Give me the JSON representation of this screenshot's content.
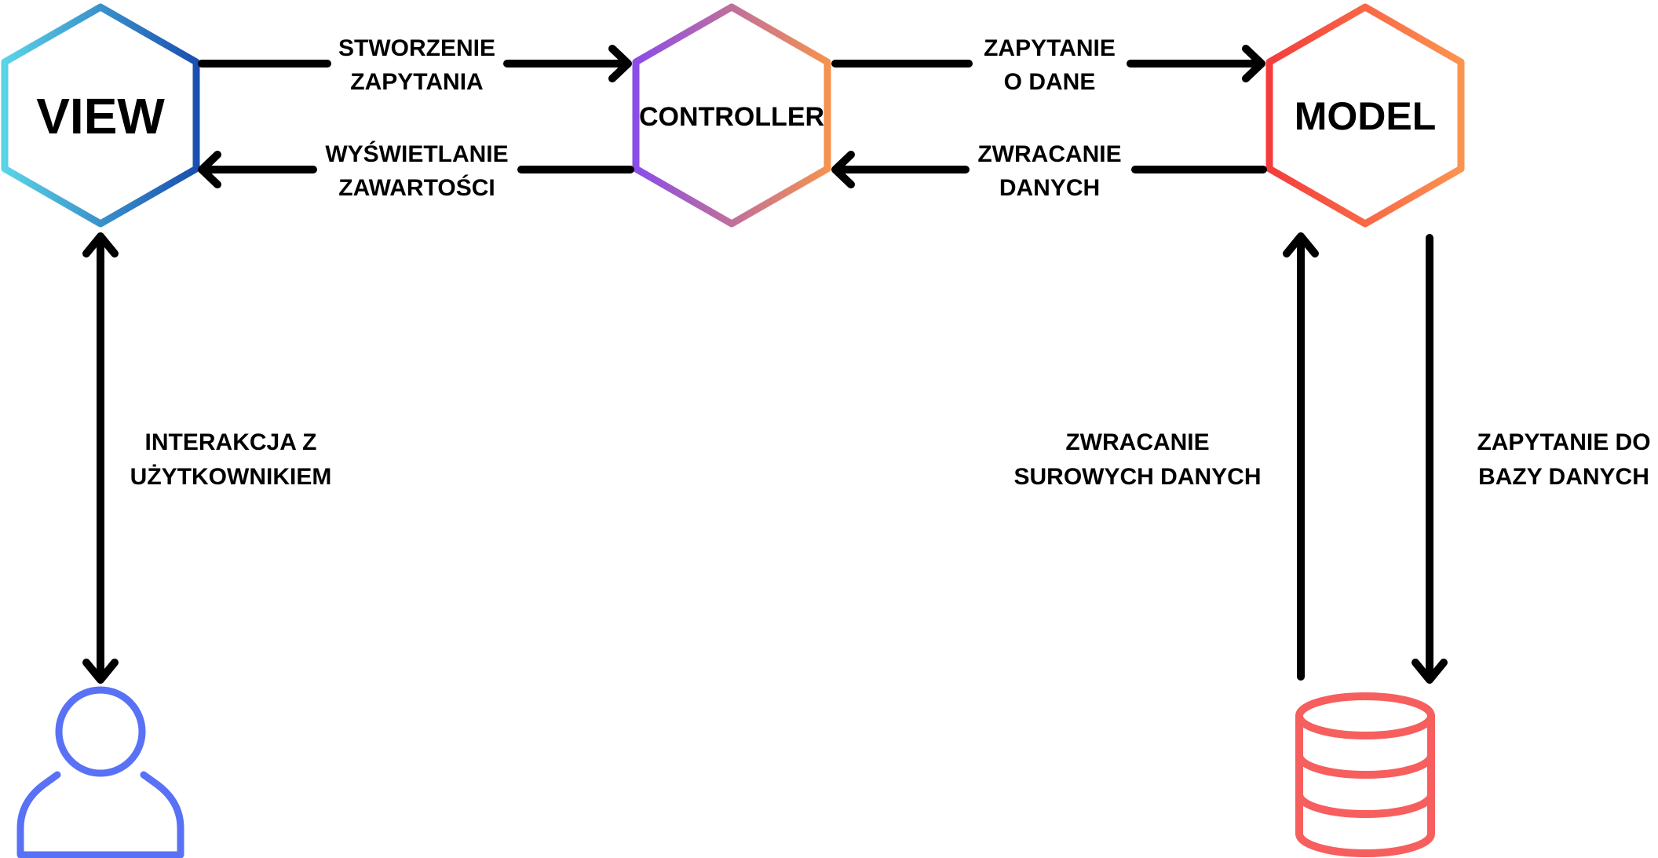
{
  "nodes": {
    "view": {
      "label": "VIEW",
      "gradient": [
        "#5ad4e6",
        "#1a4fb0"
      ]
    },
    "controller": {
      "label": "CONTROLLER",
      "gradient": [
        "#8a4de8",
        "#f5924f"
      ]
    },
    "model": {
      "label": "MODEL",
      "gradient": [
        "#f53c3c",
        "#fb9450"
      ]
    }
  },
  "icons": {
    "user": {
      "name": "user-icon",
      "color": "#5871f5"
    },
    "database": {
      "name": "database-icon",
      "color": "#f75e5e"
    }
  },
  "edges": {
    "view_to_controller": [
      "STWORZENIE",
      "ZAPYTANIA"
    ],
    "controller_to_view": [
      "WYŚWIETLANIE",
      "ZAWARTOŚCI"
    ],
    "controller_to_model": [
      "ZAPYTANIE",
      "O DANE"
    ],
    "model_to_controller": [
      "ZWRACANIE",
      "DANYCH"
    ],
    "user_view": [
      "INTERAKCJA Z",
      "UŻYTKOWNIKIEM"
    ],
    "database_to_model": [
      "ZWRACANIE",
      "SUROWYCH DANYCH"
    ],
    "model_to_database": [
      "ZAPYTANIE DO",
      "BAZY DANYCH"
    ]
  }
}
